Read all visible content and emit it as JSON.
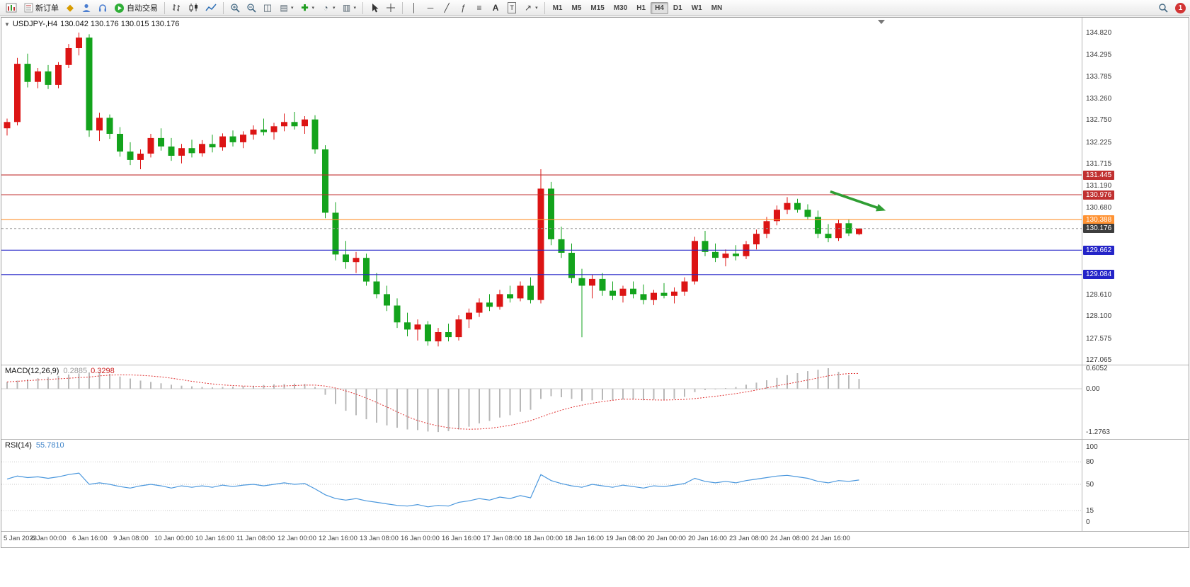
{
  "toolbar": {
    "groups": [
      {
        "buttons": [
          {
            "name": "new-chart",
            "icon": "chart-new-icon"
          },
          {
            "name": "new-order",
            "icon": "order-form-icon",
            "label": "新订单"
          },
          {
            "name": "mql5-market",
            "icon": "market-gold-icon"
          },
          {
            "name": "user-profile",
            "icon": "profile-icon"
          },
          {
            "name": "support",
            "icon": "headset-icon"
          },
          {
            "name": "auto-trading",
            "icon": "play-green-icon",
            "label": "自动交易"
          }
        ]
      },
      {
        "buttons": [
          {
            "name": "bar-chart-mode",
            "icon": "bars-icon"
          },
          {
            "name": "candlestick-mode",
            "icon": "candles-icon"
          },
          {
            "name": "line-chart-mode",
            "icon": "line-icon"
          }
        ]
      },
      {
        "buttons": [
          {
            "name": "zoom-in",
            "icon": "zoom-in-icon"
          },
          {
            "name": "zoom-out",
            "icon": "zoom-out-icon"
          },
          {
            "name": "tile-windows",
            "icon": "tile-icon"
          },
          {
            "name": "auto-arrange",
            "icon": "cascade-icon",
            "dropdown": true
          },
          {
            "name": "add-indicator",
            "icon": "indicator-icon",
            "dropdown": true
          },
          {
            "name": "chart-period",
            "icon": "clock-icon",
            "dropdown": true
          },
          {
            "name": "chart-template",
            "icon": "template-icon",
            "dropdown": true
          }
        ]
      },
      {
        "buttons": [
          {
            "name": "cursor-tool",
            "icon": "cursor-icon"
          },
          {
            "name": "crosshair-tool",
            "icon": "crosshair-icon"
          }
        ]
      },
      {
        "buttons": [
          {
            "name": "vertical-line-tool",
            "icon": "vline-icon"
          },
          {
            "name": "horizontal-line-tool",
            "icon": "hline-icon"
          },
          {
            "name": "trendline-tool",
            "icon": "trendline-icon"
          },
          {
            "name": "fibonacci-tool",
            "icon": "fibo-icon"
          },
          {
            "name": "cycle-lines-tool",
            "icon": "cycles-icon"
          },
          {
            "name": "text-tool",
            "icon": "text-icon"
          },
          {
            "name": "text-label-tool",
            "icon": "label-icon"
          },
          {
            "name": "arrows-tool",
            "icon": "arrows-icon",
            "dropdown": true
          }
        ]
      }
    ],
    "timeframes": [
      "M1",
      "M5",
      "M15",
      "M30",
      "H1",
      "H4",
      "D1",
      "W1",
      "MN"
    ],
    "active_timeframe": "H4",
    "notification_badge": "1"
  },
  "chart_header": {
    "symbol": "USDJPY-,H4",
    "ohlc": "130.042 130.176 130.015 130.176"
  },
  "indicators": {
    "macd": {
      "name": "MACD(12,26,9)",
      "main_value": "0.2885",
      "signal_value": "0.3298"
    },
    "rsi": {
      "name": "RSI(14)",
      "value": "55.7810"
    }
  },
  "chart_data": {
    "type": "candlestick",
    "symbol": "USDJPY-",
    "timeframe": "H4",
    "ohlc_current": {
      "open": 130.042,
      "high": 130.176,
      "low": 130.015,
      "close": 130.176
    },
    "colors": {
      "up": "#dc1414",
      "down": "#13a31c",
      "macd_bar": "#b8b8b8",
      "macd_signal": "#e03434",
      "rsi_line": "#4a97dd",
      "arrow": "#2f9e33",
      "bid_line": "#9a9a9a"
    },
    "y_axis_range": [
      127.065,
      134.82
    ],
    "price_ticks": [
      "134.820",
      "134.295",
      "133.785",
      "133.260",
      "132.750",
      "132.225",
      "131.715",
      "131.190",
      "130.680",
      "128.610",
      "128.100",
      "127.575",
      "127.065"
    ],
    "line_labels": [
      {
        "text": "131.445",
        "color": "#c03030"
      },
      {
        "text": "130.976",
        "color": "#c03030"
      },
      {
        "text": "130.388",
        "color": "#ff9232"
      },
      {
        "text": "130.176",
        "color": "#3d3d3d"
      },
      {
        "text": "129.662",
        "color": "#2424c8"
      },
      {
        "text": "129.084",
        "color": "#2424c8"
      }
    ],
    "hlines": [
      {
        "price": 131.445,
        "color": "#c03030"
      },
      {
        "price": 130.976,
        "color": "#c03030"
      },
      {
        "price": 130.388,
        "color": "#ff9232"
      },
      {
        "price": 129.662,
        "color": "#2424c8"
      },
      {
        "price": 129.084,
        "color": "#2424c8"
      }
    ],
    "bid_line": {
      "price": 130.176
    },
    "arrow": {
      "from_index": 80.2,
      "from_price": 131.05,
      "to_index": 85.6,
      "to_price": 130.6
    },
    "time_labels": [
      "5 Jan 2023",
      "6 Jan 00:00",
      "6 Jan 16:00",
      "9 Jan 08:00",
      "10 Jan 00:00",
      "10 Jan 16:00",
      "11 Jan 08:00",
      "12 Jan 00:00",
      "12 Jan 16:00",
      "13 Jan 08:00",
      "16 Jan 00:00",
      "16 Jan 16:00",
      "17 Jan 08:00",
      "18 Jan 00:00",
      "18 Jan 16:00",
      "19 Jan 08:00",
      "20 Jan 00:00",
      "20 Jan 16:00",
      "23 Jan 08:00",
      "24 Jan 08:00",
      "24 Jan 16:00"
    ],
    "candles": [
      [
        132.55,
        132.78,
        132.38,
        132.7
      ],
      [
        132.7,
        134.22,
        132.62,
        134.08
      ],
      [
        134.08,
        134.32,
        133.52,
        133.65
      ],
      [
        133.65,
        133.98,
        133.5,
        133.9
      ],
      [
        133.9,
        134.05,
        133.48,
        133.58
      ],
      [
        133.58,
        134.12,
        133.5,
        134.05
      ],
      [
        134.05,
        134.55,
        133.98,
        134.45
      ],
      [
        134.45,
        134.82,
        134.28,
        134.7
      ],
      [
        134.7,
        134.78,
        132.35,
        132.5
      ],
      [
        132.5,
        132.92,
        132.25,
        132.8
      ],
      [
        132.8,
        132.88,
        132.3,
        132.42
      ],
      [
        132.42,
        132.58,
        131.88,
        132.0
      ],
      [
        132.0,
        132.22,
        131.68,
        131.8
      ],
      [
        131.8,
        132.05,
        131.58,
        131.95
      ],
      [
        131.95,
        132.42,
        131.86,
        132.32
      ],
      [
        132.32,
        132.55,
        132.02,
        132.12
      ],
      [
        132.12,
        132.32,
        131.78,
        131.9
      ],
      [
        131.9,
        132.18,
        131.72,
        132.08
      ],
      [
        132.08,
        132.28,
        131.86,
        131.96
      ],
      [
        131.96,
        132.27,
        131.88,
        132.18
      ],
      [
        132.18,
        132.4,
        131.98,
        132.1
      ],
      [
        132.1,
        132.43,
        132.02,
        132.36
      ],
      [
        132.36,
        132.5,
        132.12,
        132.22
      ],
      [
        132.22,
        132.48,
        132.08,
        132.4
      ],
      [
        132.4,
        132.62,
        132.28,
        132.52
      ],
      [
        132.52,
        132.78,
        132.38,
        132.46
      ],
      [
        132.46,
        132.68,
        132.28,
        132.6
      ],
      [
        132.6,
        132.9,
        132.48,
        132.7
      ],
      [
        132.7,
        132.94,
        132.52,
        132.6
      ],
      [
        132.6,
        132.84,
        132.42,
        132.76
      ],
      [
        132.76,
        132.86,
        131.95,
        132.05
      ],
      [
        132.05,
        132.15,
        130.42,
        130.55
      ],
      [
        130.55,
        130.8,
        129.42,
        129.56
      ],
      [
        129.56,
        129.88,
        129.22,
        129.38
      ],
      [
        129.38,
        129.62,
        129.12,
        129.48
      ],
      [
        129.48,
        129.58,
        128.82,
        128.92
      ],
      [
        128.92,
        129.12,
        128.52,
        128.62
      ],
      [
        128.62,
        128.82,
        128.22,
        128.35
      ],
      [
        128.35,
        128.52,
        127.82,
        127.95
      ],
      [
        127.95,
        128.18,
        127.62,
        127.78
      ],
      [
        127.78,
        128.02,
        127.52,
        127.9
      ],
      [
        127.9,
        127.98,
        127.4,
        127.5
      ],
      [
        127.5,
        127.82,
        127.38,
        127.72
      ],
      [
        127.72,
        127.92,
        127.5,
        127.6
      ],
      [
        127.6,
        128.12,
        127.52,
        128.02
      ],
      [
        128.02,
        128.28,
        127.82,
        128.18
      ],
      [
        128.18,
        128.52,
        128.08,
        128.42
      ],
      [
        128.42,
        128.62,
        128.22,
        128.32
      ],
      [
        128.32,
        128.72,
        128.25,
        128.62
      ],
      [
        128.62,
        128.82,
        128.42,
        128.52
      ],
      [
        128.52,
        128.92,
        128.45,
        128.82
      ],
      [
        128.82,
        129.02,
        128.4,
        128.48
      ],
      [
        128.48,
        131.58,
        128.4,
        131.12
      ],
      [
        131.12,
        131.28,
        129.78,
        129.92
      ],
      [
        129.92,
        130.22,
        129.48,
        129.6
      ],
      [
        129.6,
        129.82,
        128.88,
        129.0
      ],
      [
        129.0,
        129.22,
        127.6,
        128.82
      ],
      [
        128.82,
        129.08,
        128.52,
        128.98
      ],
      [
        128.98,
        129.12,
        128.58,
        128.7
      ],
      [
        128.7,
        128.92,
        128.48,
        128.58
      ],
      [
        128.58,
        128.82,
        128.42,
        128.75
      ],
      [
        128.75,
        128.92,
        128.52,
        128.62
      ],
      [
        128.62,
        128.85,
        128.38,
        128.48
      ],
      [
        128.48,
        128.72,
        128.36,
        128.65
      ],
      [
        128.65,
        128.88,
        128.52,
        128.58
      ],
      [
        128.58,
        128.78,
        128.4,
        128.68
      ],
      [
        128.68,
        129.02,
        128.58,
        128.92
      ],
      [
        128.92,
        129.98,
        128.85,
        129.88
      ],
      [
        129.88,
        130.12,
        129.52,
        129.62
      ],
      [
        129.62,
        129.82,
        129.38,
        129.48
      ],
      [
        129.48,
        129.68,
        129.28,
        129.58
      ],
      [
        129.58,
        129.78,
        129.42,
        129.52
      ],
      [
        129.52,
        129.88,
        129.45,
        129.8
      ],
      [
        129.8,
        130.15,
        129.68,
        130.05
      ],
      [
        130.05,
        130.45,
        129.95,
        130.35
      ],
      [
        130.35,
        130.72,
        130.25,
        130.62
      ],
      [
        130.62,
        130.92,
        130.52,
        130.78
      ],
      [
        130.78,
        130.88,
        130.55,
        130.62
      ],
      [
        130.62,
        130.75,
        130.38,
        130.45
      ],
      [
        130.45,
        130.6,
        129.95,
        130.05
      ],
      [
        130.05,
        130.28,
        129.85,
        129.95
      ],
      [
        129.95,
        130.38,
        129.88,
        130.3
      ],
      [
        130.3,
        130.4,
        130.0,
        130.06
      ],
      [
        130.042,
        130.176,
        130.015,
        130.176
      ]
    ],
    "macd": {
      "label": "MACD(12,26,9)",
      "current_main": 0.2885,
      "current_signal": 0.3298,
      "scale_ticks": [
        "0.6052",
        "0.00",
        "-1.2763"
      ],
      "histogram": [
        0.2,
        0.24,
        0.28,
        0.31,
        0.34,
        0.38,
        0.42,
        0.45,
        0.48,
        0.5,
        0.44,
        0.36,
        0.3,
        0.24,
        0.2,
        0.16,
        0.12,
        0.09,
        0.07,
        0.05,
        0.04,
        0.05,
        0.06,
        0.08,
        0.09,
        0.11,
        0.13,
        0.14,
        0.15,
        0.14,
        0.05,
        -0.18,
        -0.45,
        -0.65,
        -0.78,
        -0.9,
        -1.0,
        -1.08,
        -1.15,
        -1.2,
        -1.22,
        -1.26,
        -1.2763,
        -1.25,
        -1.2,
        -1.12,
        -1.02,
        -0.95,
        -0.85,
        -0.78,
        -0.68,
        -0.62,
        -0.3,
        -0.22,
        -0.25,
        -0.3,
        -0.36,
        -0.34,
        -0.33,
        -0.34,
        -0.32,
        -0.32,
        -0.34,
        -0.32,
        -0.33,
        -0.3,
        -0.24,
        -0.1,
        -0.04,
        -0.02,
        0.02,
        0.05,
        0.12,
        0.18,
        0.25,
        0.32,
        0.4,
        0.46,
        0.52,
        0.56,
        0.6052,
        0.5,
        0.4,
        0.2885
      ]
    },
    "rsi": {
      "label": "RSI(14)",
      "current": 55.781,
      "scale_ticks": [
        "100",
        "80",
        "50",
        "15",
        "0"
      ],
      "levels": [
        80,
        50,
        15
      ],
      "values": [
        57,
        61,
        59,
        60,
        58,
        60,
        63,
        65,
        50,
        52,
        50,
        47,
        45,
        48,
        50,
        48,
        45,
        48,
        46,
        48,
        46,
        49,
        47,
        49,
        50,
        48,
        50,
        52,
        50,
        51,
        44,
        36,
        31,
        29,
        31,
        28,
        26,
        24,
        22,
        21,
        23,
        20,
        22,
        21,
        26,
        28,
        31,
        29,
        33,
        31,
        35,
        32,
        63,
        55,
        51,
        48,
        46,
        50,
        48,
        46,
        49,
        47,
        45,
        48,
        47,
        49,
        51,
        58,
        54,
        52,
        54,
        52,
        55,
        57,
        59,
        61,
        62,
        60,
        58,
        54,
        52,
        55,
        54,
        55.78
      ]
    }
  }
}
